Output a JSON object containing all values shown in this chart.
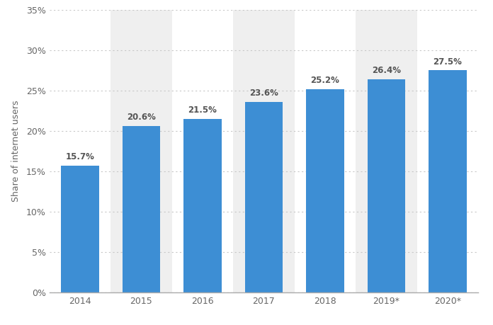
{
  "categories": [
    "2014",
    "2015",
    "2016",
    "2017",
    "2018",
    "2019*",
    "2020*"
  ],
  "values": [
    15.7,
    20.6,
    21.5,
    23.6,
    25.2,
    26.4,
    27.5
  ],
  "bar_color": "#3d8ed4",
  "ylabel": "Share of internet users",
  "ylim": [
    0,
    35
  ],
  "yticks": [
    0,
    5,
    10,
    15,
    20,
    25,
    30,
    35
  ],
  "background_color": "#ffffff",
  "plot_bg_color": "#efefef",
  "grid_color": "#c8c8c8",
  "shaded_cols": [
    1,
    3,
    5
  ],
  "label_fontsize": 8.5,
  "tick_fontsize": 9,
  "ylabel_fontsize": 9,
  "bar_width": 0.62
}
